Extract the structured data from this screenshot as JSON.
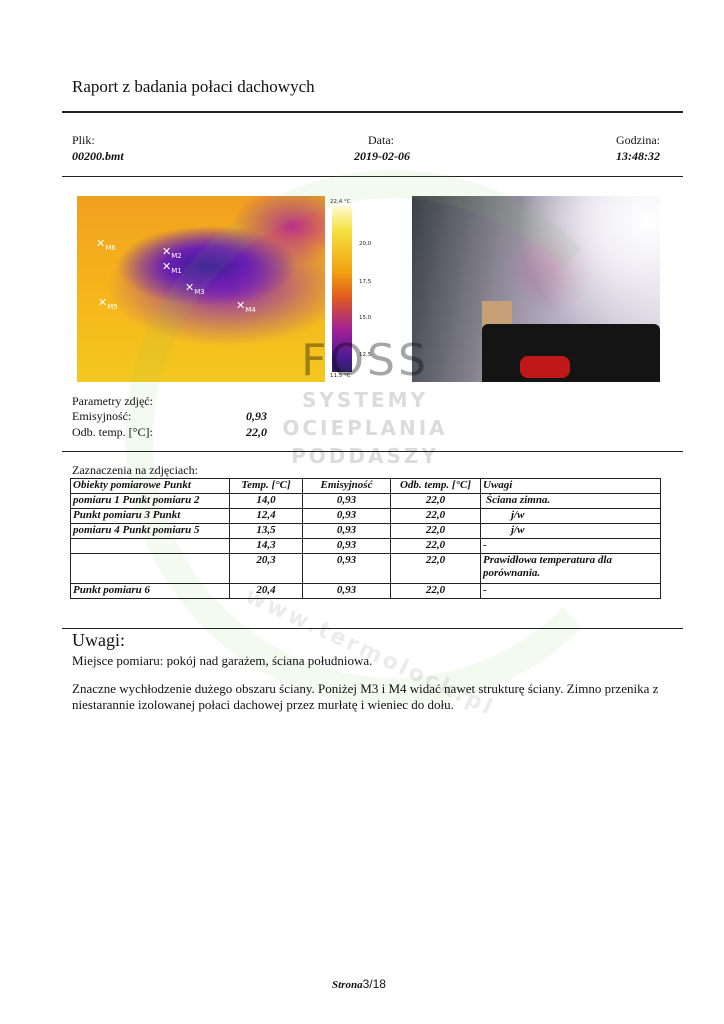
{
  "title": "Raport z badania połaci dachowych",
  "header": {
    "file_label": "Plik:",
    "file_value": "00200.bmt",
    "date_label": "Data:",
    "date_value": "2019-02-06",
    "time_label": "Godzina:",
    "time_value": "13:48:32"
  },
  "thermal": {
    "markers": [
      "M1",
      "M2",
      "M3",
      "M4",
      "M5",
      "M6"
    ],
    "scale": {
      "max": "22,4 °C",
      "t1": "20,0",
      "t2": "17,5",
      "t3": "15,0",
      "t4": "12,5",
      "min": "11,5 °C"
    }
  },
  "params": {
    "heading": "Parametry zdjęć:",
    "emis_label": "Emisyjność:",
    "emis_value": "0,93",
    "refl_label": "Odb. temp. [°C]:",
    "refl_value": "22,0"
  },
  "marks": {
    "heading": "Zaznaczenia na zdjęciach:",
    "columns": [
      "Obiekty pomiarowe Punkt",
      "Temp. [°C]",
      "Emisyjność",
      "Odb. temp. [°C]",
      "Uwagi"
    ],
    "rows": [
      [
        "pomiaru 1 Punkt pomiaru 2",
        "14,0",
        "0,93",
        "22,0",
        "Ściana zimna."
      ],
      [
        "Punkt pomiaru 3 Punkt",
        "12,4",
        "0,93",
        "22,0",
        "j/w"
      ],
      [
        "pomiaru 4 Punkt pomiaru 5",
        "13,5",
        "0,93",
        "22,0",
        "j/w"
      ],
      [
        "",
        "14,3",
        "0,93",
        "22,0",
        "-"
      ],
      [
        "",
        "20,3",
        "0,93",
        "22,0",
        "Prawidłowa temperatura dla porównania."
      ],
      [
        "Punkt pomiaru 6",
        "20,4",
        "0,93",
        "22,0",
        "-"
      ]
    ]
  },
  "notes": {
    "heading": "Uwagi:",
    "line1": "Miejsce pomiaru: pokój nad garażem, ściana południowa.",
    "para": "Znaczne wychłodzenie dużego obszaru ściany. Poniżej M3 i M4 widać nawet strukturę ściany. Zimno przenika z niestarannie izolowanej połaci dachowej przez murłatę i wieniec do dołu."
  },
  "watermark": {
    "brand": "FOSS",
    "line1": "SYSTEMY",
    "line2": "OCIEPLANIA",
    "line3": "PODDASZY",
    "site": "www.termolock.pl"
  },
  "footer": {
    "label": "Strona",
    "page": "3/18"
  }
}
